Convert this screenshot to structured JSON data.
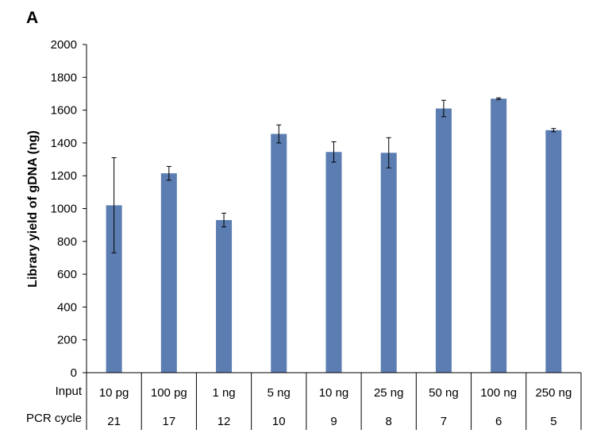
{
  "panel_label": "A",
  "chart_data": {
    "type": "bar",
    "title": "",
    "ylabel": "Library yield of gDNA (ng)",
    "ylim": [
      0,
      2000
    ],
    "yticks": [
      0,
      200,
      400,
      600,
      800,
      1000,
      1200,
      1400,
      1600,
      1800,
      2000
    ],
    "categories": [
      "10 pg",
      "100 pg",
      "1 ng",
      "5 ng",
      "10 ng",
      "25 ng",
      "50 ng",
      "100 ng",
      "250 ng"
    ],
    "values": [
      1020,
      1215,
      930,
      1455,
      1345,
      1340,
      1610,
      1670,
      1478
    ],
    "errors": [
      290,
      42,
      42,
      55,
      62,
      92,
      50,
      5,
      10
    ],
    "bar_color": "#5B7DB1",
    "grid": false,
    "table": {
      "row_labels": [
        "Input",
        "PCR cycle"
      ],
      "pcr_cycles": [
        "21",
        "17",
        "12",
        "10",
        "9",
        "8",
        "7",
        "6",
        "5"
      ]
    }
  }
}
